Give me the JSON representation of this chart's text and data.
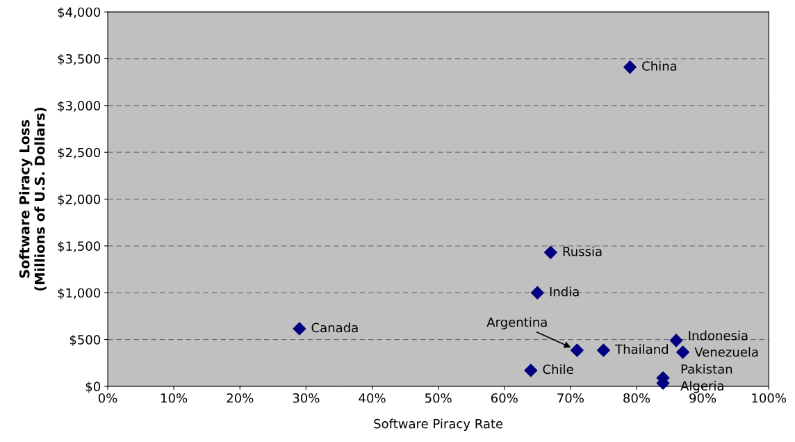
{
  "chart_data": {
    "type": "scatter",
    "xlabel": "Software Piracy Rate",
    "ylabel": "Software Piracy Loss\n(Millions of U.S. Dollars)",
    "x": [
      79,
      67,
      65,
      29,
      71,
      75,
      86,
      87,
      64,
      84,
      84
    ],
    "values": [
      3410,
      1430,
      1000,
      615,
      385,
      385,
      490,
      365,
      170,
      90,
      35
    ],
    "color": "#000080",
    "marker": "diamond",
    "grid": "y",
    "xlim": [
      0,
      100
    ],
    "ylim": [
      0,
      4000
    ],
    "xticks": [
      {
        "value": 0,
        "label": "0%"
      },
      {
        "value": 10,
        "label": "10%"
      },
      {
        "value": 20,
        "label": "20%"
      },
      {
        "value": 30,
        "label": "30%"
      },
      {
        "value": 40,
        "label": "40%"
      },
      {
        "value": 50,
        "label": "50%"
      },
      {
        "value": 60,
        "label": "60%"
      },
      {
        "value": 70,
        "label": "70%"
      },
      {
        "value": 80,
        "label": "80%"
      },
      {
        "value": 90,
        "label": "90%"
      },
      {
        "value": 100,
        "label": "100%"
      }
    ],
    "yticks": [
      {
        "value": 0,
        "label": "$0"
      },
      {
        "value": 500,
        "label": "$500"
      },
      {
        "value": 1000,
        "label": "$1,000"
      },
      {
        "value": 1500,
        "label": "$1,500"
      },
      {
        "value": 2000,
        "label": "$2,000"
      },
      {
        "value": 2500,
        "label": "$2,500"
      },
      {
        "value": 3000,
        "label": "$3,000"
      },
      {
        "value": 3500,
        "label": "$3,500"
      },
      {
        "value": 4000,
        "label": "$4,000"
      }
    ],
    "annotations": [
      {
        "text": "China",
        "x": 79,
        "y": 3410
      },
      {
        "text": "Russia",
        "x": 67,
        "y": 1430
      },
      {
        "text": "India",
        "x": 65,
        "y": 1000
      },
      {
        "text": "Canada",
        "x": 29,
        "y": 615
      },
      {
        "text": "Argentina",
        "x": 71,
        "y": 385
      },
      {
        "text": "Thailand",
        "x": 75,
        "y": 385
      },
      {
        "text": "Indonesia",
        "x": 86,
        "y": 490
      },
      {
        "text": "Venezuela",
        "x": 87,
        "y": 365
      },
      {
        "text": "Chile",
        "x": 64,
        "y": 170
      },
      {
        "text": "Pakistan",
        "x": 84,
        "y": 90
      },
      {
        "text": "Algeria",
        "x": 84,
        "y": 35
      }
    ]
  }
}
